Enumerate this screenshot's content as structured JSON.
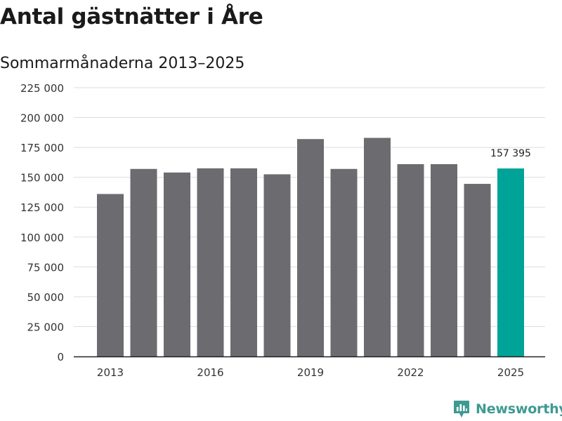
{
  "header": {
    "title": "Antal gästnätter i Åre",
    "subtitle": "Sommarmånaderna 2013–2025"
  },
  "branding": {
    "name": "Newsworthy",
    "logo_icon": "bar-chart-logo-icon",
    "color": "#3d9a93"
  },
  "colors": {
    "bar": "#6b6b70",
    "highlight": "#00a398",
    "grid": "#dddddd",
    "axis": "#222222"
  },
  "chart_data": {
    "type": "bar",
    "title": "Antal gästnätter i Åre",
    "subtitle": "Sommarmånaderna 2013–2025",
    "xlabel": "",
    "ylabel": "",
    "categories": [
      "2013",
      "2014",
      "2015",
      "2016",
      "2017",
      "2018",
      "2019",
      "2020",
      "2021",
      "2022",
      "2023",
      "2024",
      "2025"
    ],
    "values": [
      136000,
      157000,
      154000,
      157500,
      157500,
      152500,
      182000,
      157000,
      183000,
      161000,
      161000,
      144500,
      157395
    ],
    "ylim": [
      0,
      225000
    ],
    "yticks": [
      0,
      25000,
      50000,
      75000,
      100000,
      125000,
      150000,
      175000,
      200000,
      225000
    ],
    "ytick_labels": [
      "0",
      "25 000",
      "50 000",
      "75 000",
      "100 000",
      "125 000",
      "150 000",
      "175 000",
      "200 000",
      "225 000"
    ],
    "xtick_labels": [
      "2013",
      "2016",
      "2019",
      "2022",
      "2025"
    ],
    "highlight_category": "2025",
    "annotations": [
      {
        "category": "2025",
        "text": "157 395"
      }
    ],
    "grid": true,
    "legend": "none"
  }
}
